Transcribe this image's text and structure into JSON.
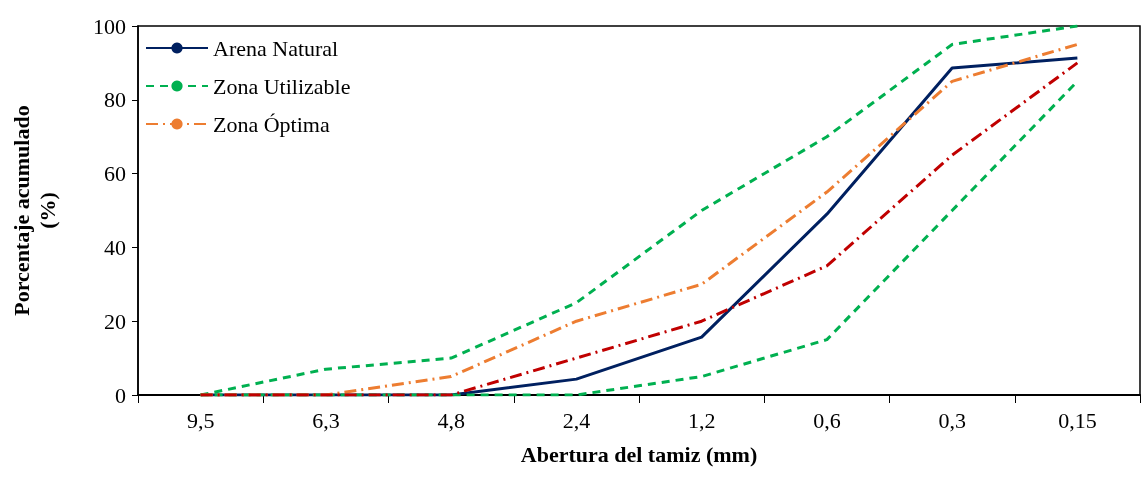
{
  "chart_data": {
    "type": "line",
    "xlabel": "Abertura del tamiz (mm)",
    "ylabel": "Porcentaje acumulado\n(%)",
    "categories": [
      "9,5",
      "6,3",
      "4,8",
      "2,4",
      "1,2",
      "0,6",
      "0,3",
      "0,15"
    ],
    "ylim": [
      0,
      100
    ],
    "yticks": [
      0,
      20,
      40,
      60,
      80,
      100
    ],
    "grid": false,
    "legend": "top left",
    "marker": "none",
    "series": [
      {
        "name": "Arena Natural",
        "color": "#002060",
        "line_style": "solid",
        "values": [
          0,
          0,
          0,
          4.3,
          15.7,
          49,
          88.6,
          91.3
        ]
      },
      {
        "name": "Zona Utilizable",
        "color": "#00b050",
        "line_style": "dashed",
        "values": [
          0,
          7,
          10,
          25,
          50,
          70,
          95,
          100
        ]
      },
      {
        "color": "#00b050",
        "line_style": "dashed",
        "values": [
          0,
          0,
          0,
          0,
          5,
          15,
          50,
          85
        ]
      },
      {
        "name": "Zona Óptima",
        "color": "#ed7d31",
        "line_style": "dashdot",
        "values": [
          0,
          0,
          5,
          20,
          30,
          55,
          85,
          95
        ]
      },
      {
        "color": "#c00000",
        "line_style": "dashdot",
        "values": [
          0,
          0,
          0,
          10,
          20,
          35,
          65,
          90
        ]
      }
    ]
  }
}
